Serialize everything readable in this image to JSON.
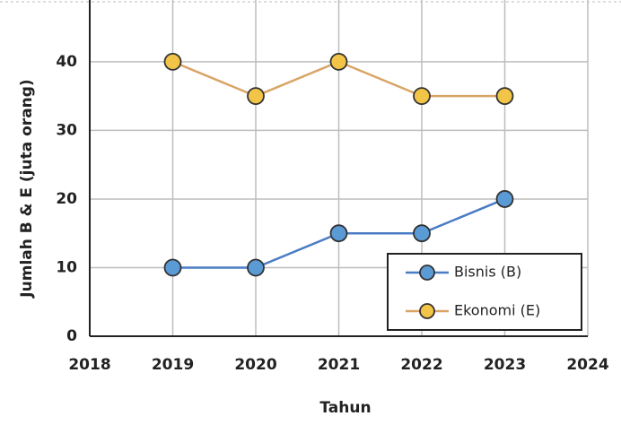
{
  "chart_data": {
    "type": "line",
    "x": [
      2019,
      2020,
      2021,
      2022,
      2023
    ],
    "series": [
      {
        "name": "Bisnis (B)",
        "color": "#5b9bd5",
        "line_color": "#4a7cc4",
        "values": [
          10,
          10,
          15,
          15,
          20
        ]
      },
      {
        "name": "Ekonomi (E)",
        "color": "#f2c447",
        "line_color": "#d9a466",
        "values": [
          40,
          35,
          40,
          35,
          35
        ]
      }
    ],
    "xlabel": "Tahun",
    "ylabel": "Jumlah B & E (juta orang)",
    "xlim": [
      2018,
      2024
    ],
    "xticks": [
      2018,
      2019,
      2020,
      2021,
      2022,
      2023,
      2024
    ],
    "ylim": [
      0,
      49
    ],
    "yticks": [
      0,
      10,
      20,
      30,
      40
    ],
    "grid": true,
    "legend": "lower right"
  }
}
